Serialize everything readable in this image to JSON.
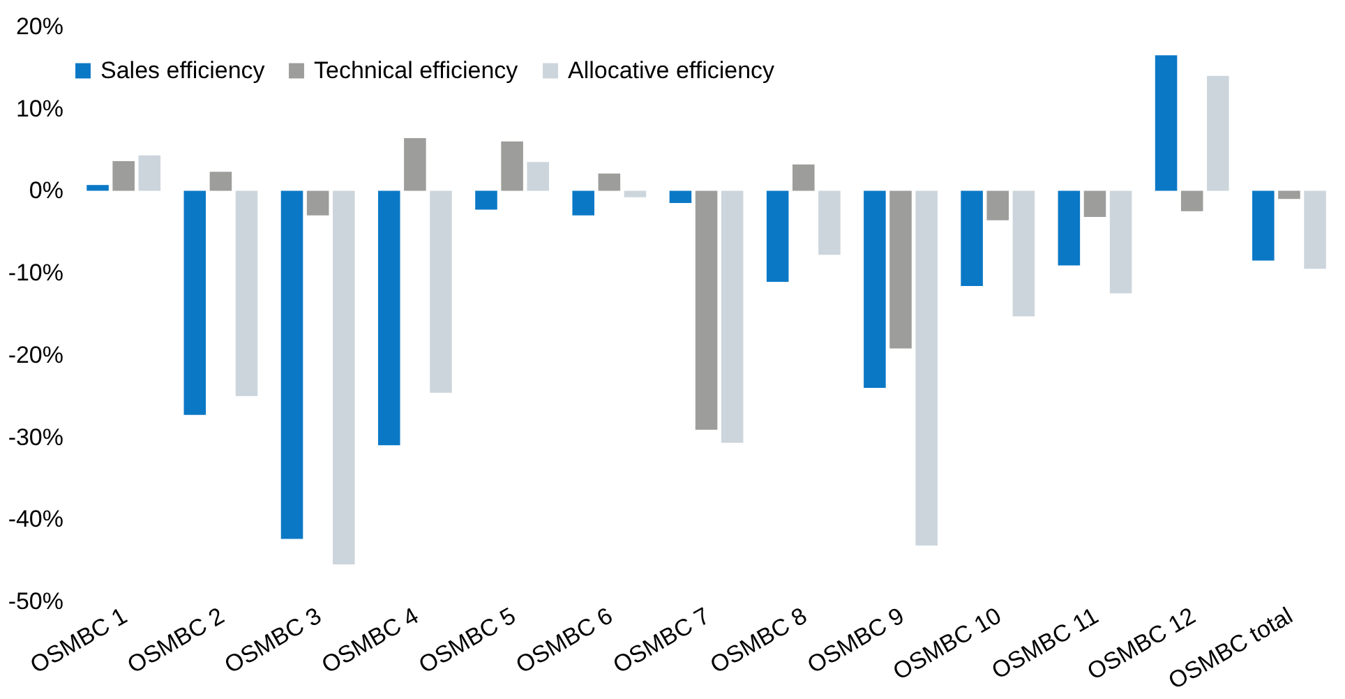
{
  "chart_data": {
    "type": "bar",
    "categories": [
      "OSMBC 1",
      "OSMBC 2",
      "OSMBC 3",
      "OSMBC 4",
      "OSMBC 5",
      "OSMBC 6",
      "OSMBC 7",
      "OSMBC 8",
      "OSMBC 9",
      "OSMBC 10",
      "OSMBC 11",
      "OSMBC 12",
      "OSMBC total"
    ],
    "series": [
      {
        "name": "Sales efficiency",
        "color": "#0b78c6",
        "values": [
          0.7,
          -27.3,
          -42.4,
          -31,
          -2.3,
          -3,
          -1.5,
          -11.1,
          -24,
          -11.6,
          -9.1,
          16.5,
          -8.5
        ]
      },
      {
        "name": "Technical efficiency",
        "color": "#9d9d9b",
        "values": [
          3.6,
          2.3,
          -3,
          6.4,
          6,
          2.1,
          -29.1,
          3.2,
          -19.2,
          -3.6,
          -3.2,
          -2.5,
          -1
        ]
      },
      {
        "name": "Allocative efficiency",
        "color": "#ccd5dc",
        "values": [
          4.3,
          -25,
          -45.5,
          -24.6,
          3.5,
          -0.8,
          -30.7,
          -7.8,
          -43.2,
          -15.3,
          -12.5,
          14,
          -9.5
        ]
      }
    ],
    "ylim": [
      -50,
      20
    ],
    "yticks": [
      {
        "value": -50,
        "label": "-50%"
      },
      {
        "value": -40,
        "label": "-40%"
      },
      {
        "value": -30,
        "label": "-30%"
      },
      {
        "value": -20,
        "label": "-20%"
      },
      {
        "value": -10,
        "label": "-10%"
      },
      {
        "value": 0,
        "label": "0%"
      },
      {
        "value": 10,
        "label": "10%"
      },
      {
        "value": 20,
        "label": "20%"
      }
    ],
    "grid": false,
    "legend": "top"
  }
}
